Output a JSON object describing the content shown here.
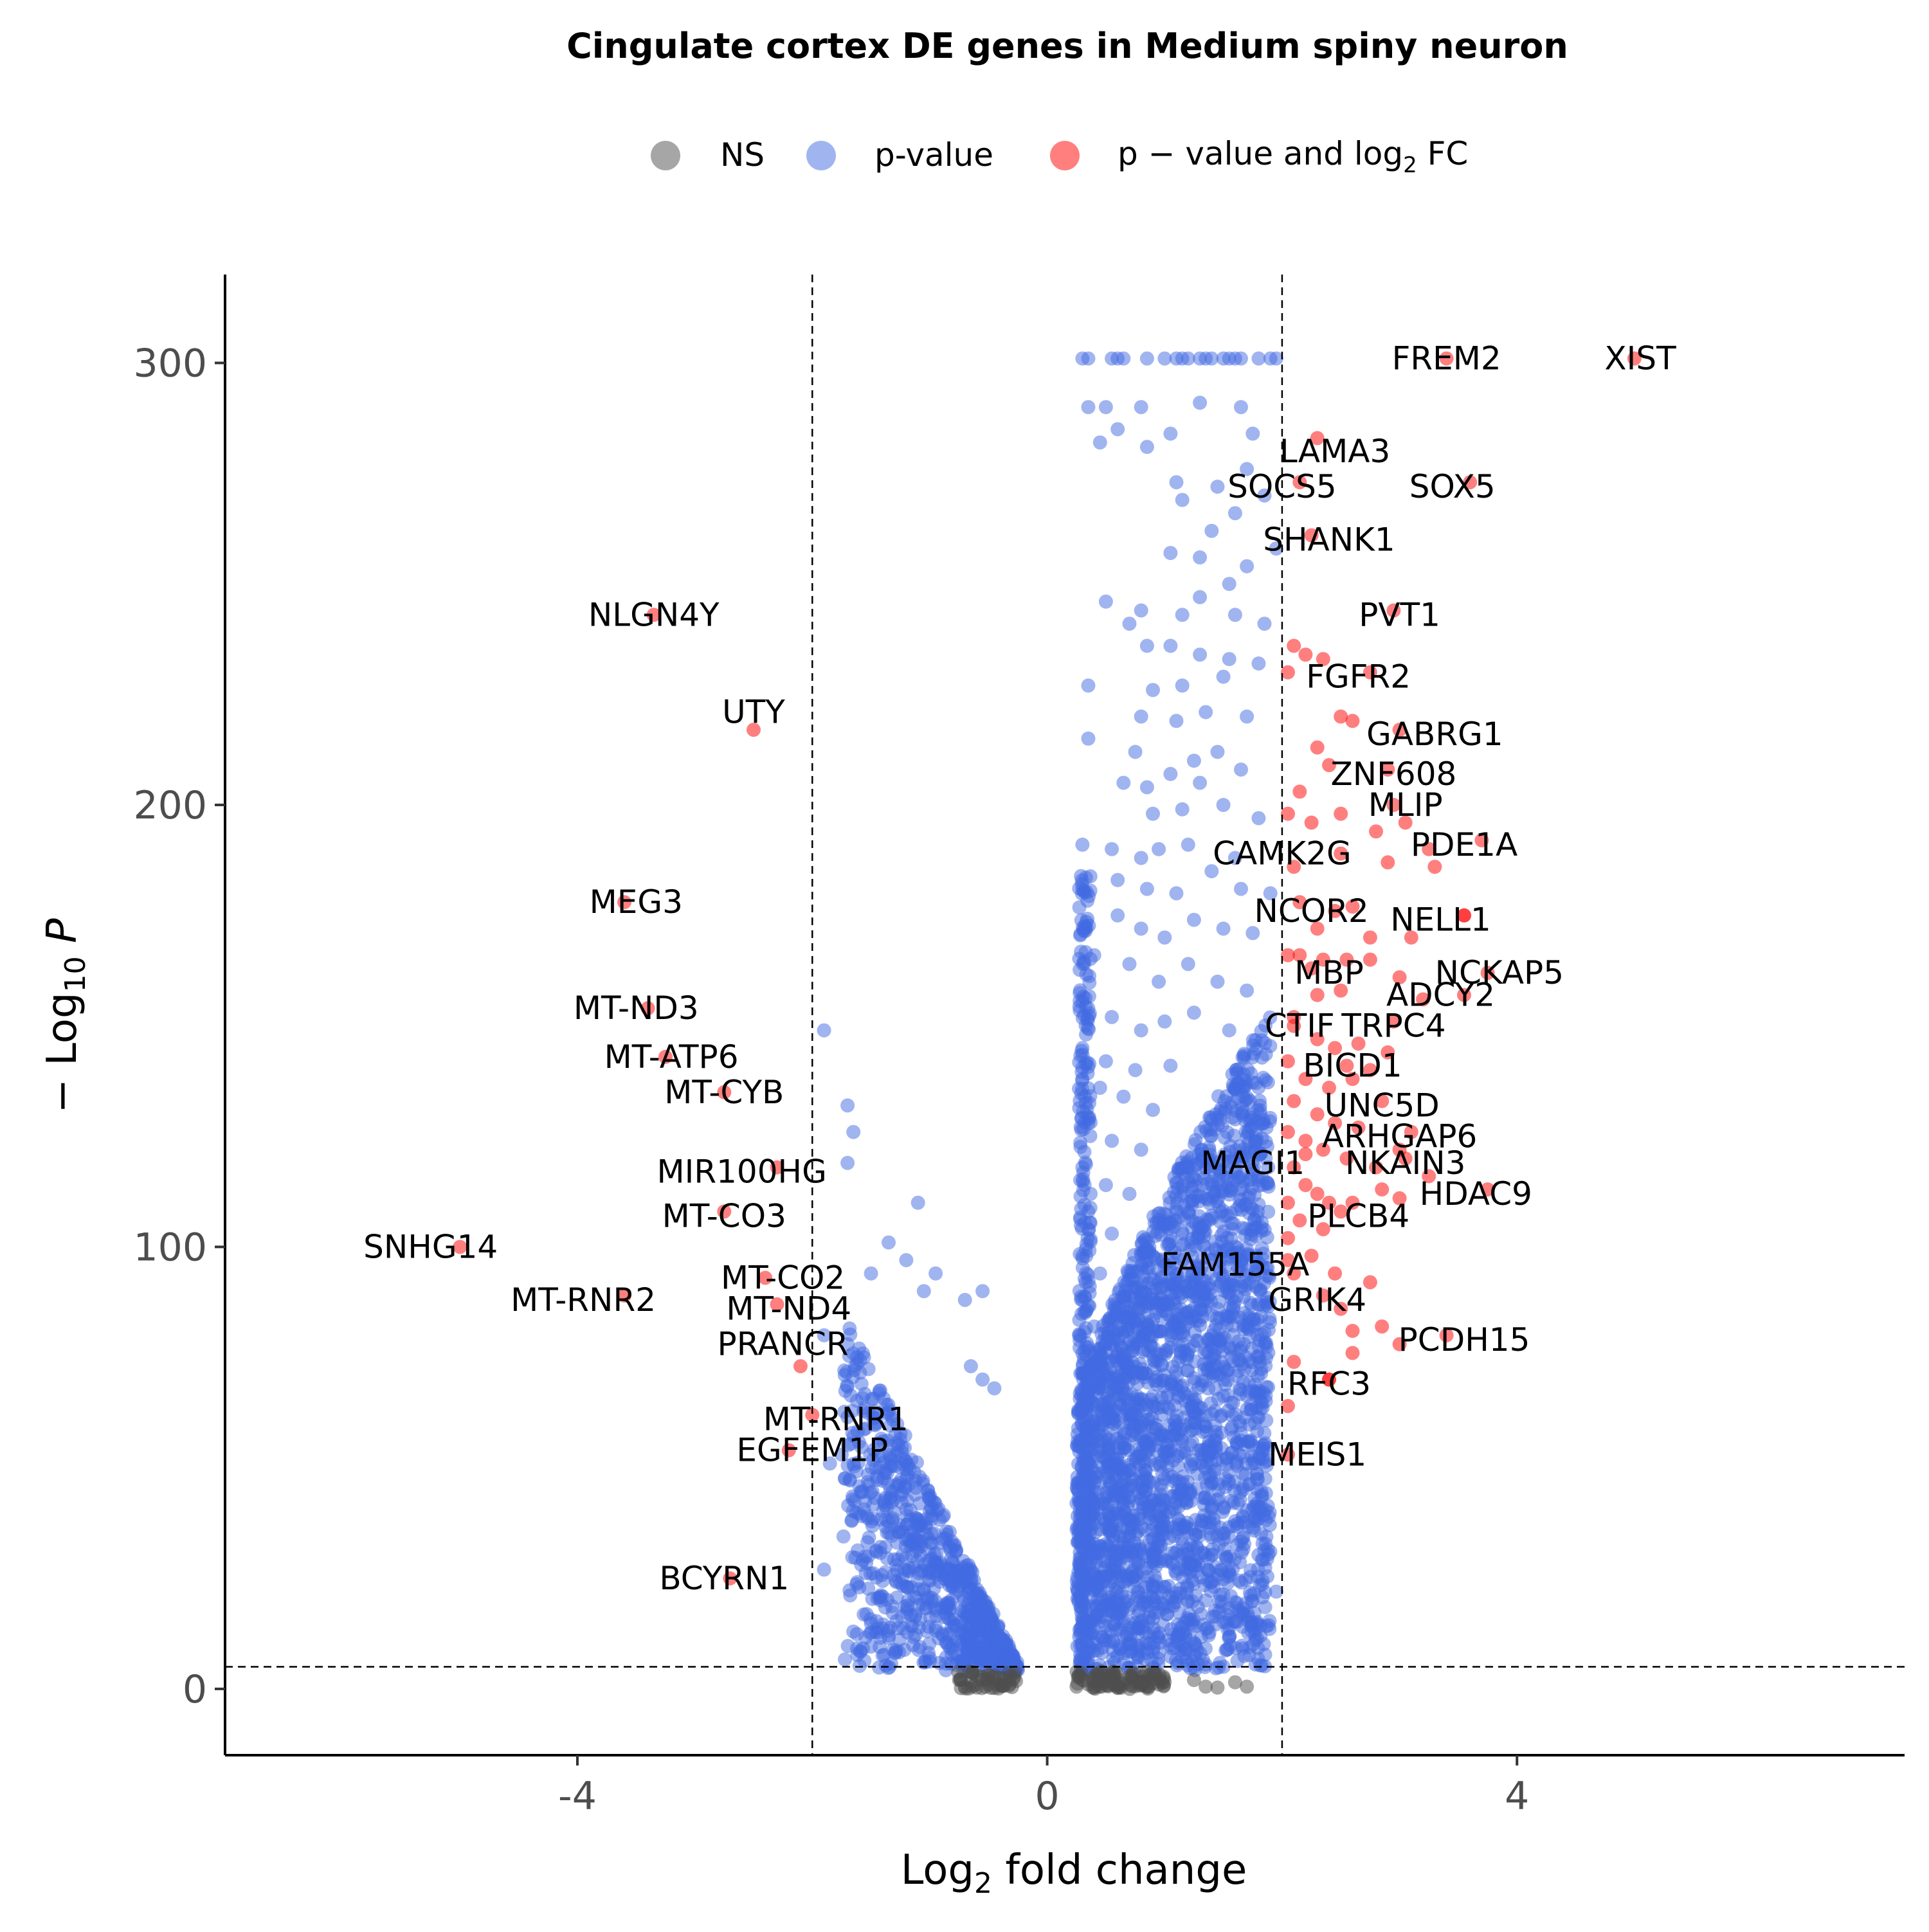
{
  "chart_data": {
    "type": "scatter",
    "title": "Cingulate cortex DE genes in Medium spiny neuron",
    "xlabel": {
      "base": "Log",
      "sub": "2",
      "rest": " fold change"
    },
    "ylabel": {
      "prefix": "− Log",
      "sub": "10",
      "italic": " P"
    },
    "xlim": [
      -7,
      7.3
    ],
    "ylim": [
      -15,
      320
    ],
    "xticks": [
      -4,
      0,
      4
    ],
    "xtick_labels": [
      "-4",
      "0",
      "4"
    ],
    "yticks": [
      0,
      100,
      200,
      300
    ],
    "ytick_labels": [
      "0",
      "100",
      "200",
      "300"
    ],
    "grid": false,
    "legend_position": "top",
    "legend": [
      {
        "key": "NS",
        "label": "NS",
        "color": "#4d4d4d"
      },
      {
        "key": "p",
        "label": "p-value",
        "color": "#4169e1"
      },
      {
        "key": "both",
        "label_pre": "p − value and log",
        "label_sub": "2",
        "label_post": " FC",
        "color": "#ff0000"
      }
    ],
    "cutoffs": {
      "log2fc": [
        -2,
        2
      ],
      "neg_log10_p": 5
    },
    "series": [
      {
        "key": "NS",
        "description_cluster": "non-significant near zero",
        "points": [
          [
            -0.75,
            2
          ],
          [
            -0.7,
            0.5
          ],
          [
            -0.65,
            1.5
          ],
          [
            -0.6,
            0.3
          ],
          [
            -0.5,
            1
          ],
          [
            -0.45,
            0.2
          ],
          [
            -0.4,
            2.5
          ],
          [
            -0.38,
            0.8
          ],
          [
            -0.35,
            1.5
          ],
          [
            -0.3,
            0.4
          ],
          [
            -0.28,
            2.8
          ],
          [
            0.25,
            0.5
          ],
          [
            0.3,
            2
          ],
          [
            0.35,
            1
          ],
          [
            0.4,
            0.3
          ],
          [
            0.45,
            2.5
          ],
          [
            0.5,
            0.8
          ],
          [
            0.55,
            1.8
          ],
          [
            0.6,
            0.2
          ],
          [
            0.65,
            1.2
          ],
          [
            0.7,
            2.9
          ],
          [
            0.75,
            0.6
          ],
          [
            0.8,
            1.6
          ],
          [
            0.85,
            0.4
          ],
          [
            0.9,
            2.2
          ],
          [
            0.95,
            1
          ],
          [
            1.0,
            1.6
          ],
          [
            1.25,
            2
          ],
          [
            1.35,
            0.5
          ],
          [
            1.45,
            0.3
          ],
          [
            1.6,
            1.5
          ],
          [
            1.7,
            0.5
          ]
        ]
      },
      {
        "key": "p",
        "description_cluster": "significant p-value only",
        "points": []
      }
    ],
    "highlighted_points": [
      {
        "label": "XIST",
        "x": 5.0,
        "y": 301,
        "lx": 5.05,
        "ly": 301
      },
      {
        "label": "FREM2",
        "x": 3.4,
        "y": 301,
        "lx": 3.4,
        "ly": 301
      },
      {
        "label": "LAMA3",
        "x": 2.3,
        "y": 283,
        "lx": 2.45,
        "ly": 280
      },
      {
        "label": "SOCS5",
        "x": 2.15,
        "y": 273,
        "lx": 2.0,
        "ly": 272
      },
      {
        "label": "SOX5",
        "x": 3.6,
        "y": 273,
        "lx": 3.45,
        "ly": 272
      },
      {
        "label": "SHANK1",
        "x": 2.25,
        "y": 261,
        "lx": 2.4,
        "ly": 260
      },
      {
        "label": "PVT1",
        "x": 2.95,
        "y": 244,
        "lx": 3.0,
        "ly": 243
      },
      {
        "label": "FGFR2",
        "x": 2.75,
        "y": 230,
        "lx": 2.65,
        "ly": 229
      },
      {
        "label": "GABRG1",
        "x": 3.0,
        "y": 217,
        "lx": 3.3,
        "ly": 216
      },
      {
        "label": "ZNF608",
        "x": 2.9,
        "y": 208,
        "lx": 2.95,
        "ly": 207
      },
      {
        "label": "MLIP",
        "x": 2.95,
        "y": 200,
        "lx": 3.05,
        "ly": 200
      },
      {
        "label": "PDE1A",
        "x": 3.7,
        "y": 192,
        "lx": 3.55,
        "ly": 191
      },
      {
        "label": "CAMK2G",
        "x": 2.5,
        "y": 189,
        "lx": 2.0,
        "ly": 189
      },
      {
        "label": "NCOR2",
        "x": 2.45,
        "y": 176,
        "lx": 2.25,
        "ly": 176
      },
      {
        "label": "NELL1",
        "x": 3.55,
        "y": 175,
        "lx": 3.35,
        "ly": 174
      },
      {
        "label": "NCKAP5",
        "x": 3.75,
        "y": 162,
        "lx": 3.85,
        "ly": 162
      },
      {
        "label": "MBP",
        "x": 2.25,
        "y": 163,
        "lx": 2.4,
        "ly": 162
      },
      {
        "label": "ADCY2",
        "x": 3.55,
        "y": 157,
        "lx": 3.35,
        "ly": 157
      },
      {
        "label": "CTIF",
        "x": 2.1,
        "y": 150,
        "lx": 2.15,
        "ly": 150
      },
      {
        "label": "TRPC4",
        "x": 2.95,
        "y": 151,
        "lx": 2.95,
        "ly": 150
      },
      {
        "label": "BICD1",
        "x": 2.55,
        "y": 141,
        "lx": 2.6,
        "ly": 141
      },
      {
        "label": "UNC5D",
        "x": 2.85,
        "y": 133,
        "lx": 2.85,
        "ly": 132
      },
      {
        "label": "ARHGAP6",
        "x": 3.1,
        "y": 126,
        "lx": 3.0,
        "ly": 125
      },
      {
        "label": "MAGI1",
        "x": 2.2,
        "y": 121,
        "lx": 1.75,
        "ly": 119
      },
      {
        "label": "NKAIN3",
        "x": 3.05,
        "y": 120,
        "lx": 3.05,
        "ly": 119
      },
      {
        "label": "HDAC9",
        "x": 3.75,
        "y": 113,
        "lx": 3.65,
        "ly": 112
      },
      {
        "label": "PLCB4",
        "x": 2.5,
        "y": 108,
        "lx": 2.65,
        "ly": 107
      },
      {
        "label": "FAM155A",
        "x": 2.05,
        "y": 97,
        "lx": 1.6,
        "ly": 96
      },
      {
        "label": "GRIK4",
        "x": 2.35,
        "y": 89,
        "lx": 2.3,
        "ly": 88
      },
      {
        "label": "PCDH15",
        "x": 3.4,
        "y": 80,
        "lx": 3.55,
        "ly": 79
      },
      {
        "label": "RFC3",
        "x": 2.4,
        "y": 70,
        "lx": 2.4,
        "ly": 69
      },
      {
        "label": "MEIS1",
        "x": 2.05,
        "y": 53,
        "lx": 2.3,
        "ly": 53
      },
      {
        "label": "NLGN4Y",
        "x": -3.35,
        "y": 243,
        "lx": -3.35,
        "ly": 243
      },
      {
        "label": "UTY",
        "x": -2.5,
        "y": 217,
        "lx": -2.5,
        "ly": 221
      },
      {
        "label": "MEG3",
        "x": -3.6,
        "y": 178,
        "lx": -3.5,
        "ly": 178
      },
      {
        "label": "MT-ND3",
        "x": -3.4,
        "y": 154,
        "lx": -3.5,
        "ly": 154
      },
      {
        "label": "MT-ATP6",
        "x": -3.25,
        "y": 143,
        "lx": -3.2,
        "ly": 143
      },
      {
        "label": "MT-CYB",
        "x": -2.75,
        "y": 135,
        "lx": -2.75,
        "ly": 135
      },
      {
        "label": "MIR100HG",
        "x": -2.3,
        "y": 118,
        "lx": -2.6,
        "ly": 117
      },
      {
        "label": "MT-CO3",
        "x": -2.75,
        "y": 108,
        "lx": -2.75,
        "ly": 107
      },
      {
        "label": "SNHG14",
        "x": -5.0,
        "y": 100,
        "lx": -5.25,
        "ly": 100
      },
      {
        "label": "MT-CO2",
        "x": -2.4,
        "y": 93,
        "lx": -2.25,
        "ly": 93
      },
      {
        "label": "MT-RNR2",
        "x": -3.6,
        "y": 89,
        "lx": -3.95,
        "ly": 88
      },
      {
        "label": "MT-ND4",
        "x": -2.3,
        "y": 87,
        "lx": -2.2,
        "ly": 86
      },
      {
        "label": "PRANCR",
        "x": -2.1,
        "y": 73,
        "lx": -2.25,
        "ly": 78
      },
      {
        "label": "MT-RNR1",
        "x": -2.0,
        "y": 62,
        "lx": -1.8,
        "ly": 61
      },
      {
        "label": "EGFEM1P",
        "x": -2.2,
        "y": 54,
        "lx": -2.0,
        "ly": 54
      },
      {
        "label": "BCYRN1",
        "x": -2.7,
        "y": 25,
        "lx": -2.75,
        "ly": 25
      }
    ],
    "extra_red_points": [
      [
        2.05,
        230
      ],
      [
        2.1,
        236
      ],
      [
        2.2,
        234
      ],
      [
        2.35,
        233
      ],
      [
        2.5,
        220
      ],
      [
        2.6,
        219
      ],
      [
        2.3,
        213
      ],
      [
        2.4,
        209
      ],
      [
        2.15,
        203
      ],
      [
        2.05,
        198
      ],
      [
        2.25,
        196
      ],
      [
        2.5,
        198
      ],
      [
        2.8,
        194
      ],
      [
        3.05,
        196
      ],
      [
        3.25,
        190
      ],
      [
        3.3,
        186
      ],
      [
        2.1,
        186
      ],
      [
        2.9,
        187
      ],
      [
        2.15,
        178
      ],
      [
        2.3,
        172
      ],
      [
        2.6,
        177
      ],
      [
        2.75,
        170
      ],
      [
        3.1,
        170
      ],
      [
        3.55,
        175
      ],
      [
        2.05,
        166
      ],
      [
        2.15,
        166
      ],
      [
        2.35,
        165
      ],
      [
        2.55,
        165
      ],
      [
        2.75,
        165
      ],
      [
        3.0,
        161
      ],
      [
        3.2,
        156
      ],
      [
        2.3,
        157
      ],
      [
        2.5,
        158
      ],
      [
        2.1,
        152
      ],
      [
        2.3,
        147
      ],
      [
        2.45,
        145
      ],
      [
        2.65,
        146
      ],
      [
        2.9,
        144
      ],
      [
        2.05,
        142
      ],
      [
        2.2,
        138
      ],
      [
        2.4,
        136
      ],
      [
        2.6,
        138
      ],
      [
        2.75,
        140
      ],
      [
        2.1,
        133
      ],
      [
        2.3,
        130
      ],
      [
        2.45,
        128
      ],
      [
        2.65,
        127
      ],
      [
        2.05,
        126
      ],
      [
        2.2,
        124
      ],
      [
        2.35,
        122
      ],
      [
        2.55,
        120
      ],
      [
        2.8,
        118
      ],
      [
        3.0,
        122
      ],
      [
        3.25,
        116
      ],
      [
        2.1,
        118
      ],
      [
        2.2,
        114
      ],
      [
        2.3,
        112
      ],
      [
        2.05,
        110
      ],
      [
        2.4,
        110
      ],
      [
        2.6,
        110
      ],
      [
        2.85,
        113
      ],
      [
        3.0,
        111
      ],
      [
        2.15,
        106
      ],
      [
        2.35,
        104
      ],
      [
        2.05,
        102
      ],
      [
        2.25,
        98
      ],
      [
        2.1,
        94
      ],
      [
        2.45,
        94
      ],
      [
        2.75,
        92
      ],
      [
        2.5,
        86
      ],
      [
        2.6,
        81
      ],
      [
        2.85,
        82
      ],
      [
        3.0,
        78
      ],
      [
        2.6,
        76
      ],
      [
        2.1,
        74
      ],
      [
        2.4,
        70
      ],
      [
        2.05,
        64
      ]
    ],
    "blue_top_row": [
      0.3,
      0.35,
      0.55,
      0.6,
      0.65,
      0.85,
      1.0,
      1.1,
      1.15,
      1.2,
      1.3,
      1.35,
      1.4,
      1.5,
      1.55,
      1.6,
      1.65,
      1.8,
      1.9,
      1.95
    ],
    "blue_sparse_points": [
      [
        0.35,
        290
      ],
      [
        0.5,
        290
      ],
      [
        0.8,
        290
      ],
      [
        1.3,
        291
      ],
      [
        1.65,
        290
      ],
      [
        0.45,
        282
      ],
      [
        0.6,
        285
      ],
      [
        0.85,
        281
      ],
      [
        1.05,
        284
      ],
      [
        1.75,
        284
      ],
      [
        1.1,
        273
      ],
      [
        1.45,
        272
      ],
      [
        1.7,
        276
      ],
      [
        1.85,
        270
      ],
      [
        1.15,
        269
      ],
      [
        1.6,
        266
      ],
      [
        1.4,
        262
      ],
      [
        1.05,
        257
      ],
      [
        1.3,
        256
      ],
      [
        1.7,
        254
      ],
      [
        1.95,
        258
      ],
      [
        1.55,
        250
      ],
      [
        0.5,
        246
      ],
      [
        0.7,
        241
      ],
      [
        0.8,
        244
      ],
      [
        1.15,
        243
      ],
      [
        1.3,
        247
      ],
      [
        1.6,
        243
      ],
      [
        1.85,
        241
      ],
      [
        0.85,
        236
      ],
      [
        1.05,
        236
      ],
      [
        1.3,
        234
      ],
      [
        1.55,
        233
      ],
      [
        1.8,
        232
      ],
      [
        0.35,
        227
      ],
      [
        0.9,
        226
      ],
      [
        1.15,
        227
      ],
      [
        1.5,
        229
      ],
      [
        0.8,
        220
      ],
      [
        1.1,
        219
      ],
      [
        1.35,
        221
      ],
      [
        1.7,
        220
      ],
      [
        0.35,
        215
      ],
      [
        0.75,
        212
      ],
      [
        1.25,
        210
      ],
      [
        1.45,
        212
      ],
      [
        1.65,
        208
      ],
      [
        0.65,
        205
      ],
      [
        0.85,
        204
      ],
      [
        1.05,
        207
      ],
      [
        1.3,
        205
      ],
      [
        0.9,
        198
      ],
      [
        1.15,
        199
      ],
      [
        1.5,
        200
      ],
      [
        1.8,
        197
      ],
      [
        0.3,
        191
      ],
      [
        0.55,
        190
      ],
      [
        0.8,
        188
      ],
      [
        0.95,
        190
      ],
      [
        1.2,
        191
      ],
      [
        1.4,
        185
      ],
      [
        1.6,
        188
      ],
      [
        0.6,
        183
      ],
      [
        0.85,
        181
      ],
      [
        1.1,
        180
      ],
      [
        1.65,
        181
      ],
      [
        1.9,
        180
      ],
      [
        0.6,
        175
      ],
      [
        0.8,
        172
      ],
      [
        1.0,
        170
      ],
      [
        1.25,
        174
      ],
      [
        1.5,
        172
      ],
      [
        1.75,
        171
      ],
      [
        0.4,
        166
      ],
      [
        0.7,
        164
      ],
      [
        0.95,
        160
      ],
      [
        1.2,
        164
      ],
      [
        1.45,
        160
      ],
      [
        1.7,
        158
      ],
      [
        0.35,
        154
      ],
      [
        0.55,
        152
      ],
      [
        0.8,
        149
      ],
      [
        1.0,
        151
      ],
      [
        1.25,
        153
      ],
      [
        1.55,
        149
      ],
      [
        0.3,
        145
      ],
      [
        0.5,
        142
      ],
      [
        0.75,
        140
      ],
      [
        1.05,
        141
      ],
      [
        0.3,
        138
      ],
      [
        0.45,
        136
      ],
      [
        0.65,
        134
      ],
      [
        0.9,
        131
      ],
      [
        0.35,
        128
      ],
      [
        0.55,
        124
      ],
      [
        0.8,
        122
      ],
      [
        0.3,
        118
      ],
      [
        0.5,
        114
      ],
      [
        0.7,
        112
      ],
      [
        0.35,
        108
      ],
      [
        0.55,
        103
      ],
      [
        0.3,
        98
      ],
      [
        0.45,
        94
      ],
      [
        0.3,
        88
      ],
      [
        0.4,
        82
      ],
      [
        0.3,
        76
      ],
      [
        0.35,
        70
      ],
      [
        0.3,
        62
      ],
      [
        0.35,
        55
      ],
      [
        0.3,
        48
      ],
      [
        0.3,
        40
      ],
      [
        -1.7,
        132
      ],
      [
        -1.65,
        126
      ],
      [
        -1.7,
        119
      ],
      [
        -1.9,
        149
      ],
      [
        -1.1,
        110
      ],
      [
        -1.35,
        101
      ],
      [
        -1.2,
        97
      ],
      [
        -1.5,
        94
      ],
      [
        -0.95,
        94
      ],
      [
        -1.05,
        90
      ],
      [
        -0.7,
        88
      ],
      [
        -0.55,
        90
      ],
      [
        -1.9,
        80
      ],
      [
        -1.7,
        78
      ],
      [
        -0.65,
        73
      ],
      [
        -0.55,
        70
      ],
      [
        -0.45,
        68
      ],
      [
        -1.9,
        27
      ],
      [
        -1.6,
        23
      ],
      [
        -1.0,
        7
      ],
      [
        -1.75,
        53
      ],
      [
        -1.85,
        51
      ],
      [
        -1.45,
        48
      ],
      [
        1.95,
        22
      ]
    ],
    "blue_dense_left": {
      "x_start": -1.7,
      "x_end": -0.25,
      "y_top": 85,
      "y_bottom": 4
    },
    "blue_dense_right": {
      "x_start": 0.25,
      "x_end": 1.9,
      "y_top_at_start": 60,
      "y_top_at_end": 150,
      "y_bottom": 4
    }
  }
}
